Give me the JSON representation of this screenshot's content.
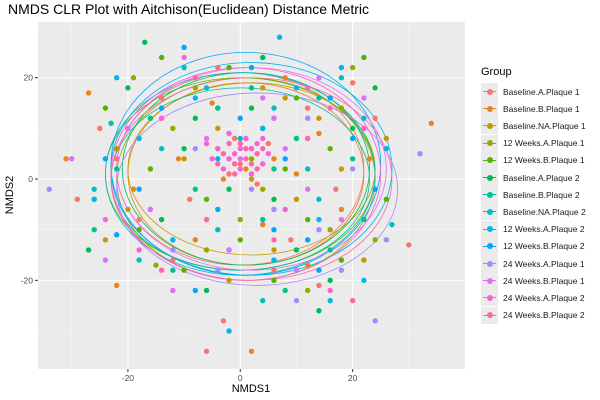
{
  "chart_data": {
    "type": "scatter",
    "title": "NMDS CLR Plot with Aitchison(Euclidean) Distance Metric",
    "xlabel": "NMDS1",
    "ylabel": "NMDS2",
    "xlim": [
      -36,
      40
    ],
    "ylim": [
      -37.5,
      31
    ],
    "x_ticks": [
      -20,
      0,
      20
    ],
    "y_ticks": [
      -20,
      0,
      20
    ],
    "x_tick_labels": [
      "-20",
      "0",
      "20"
    ],
    "y_tick_labels": [
      "-20",
      "0",
      "20"
    ],
    "grid": true,
    "legend_title": "Group",
    "legend_position": "right",
    "series": [
      {
        "name": "Baseline.A.Plaque 1",
        "color": "#F8766D",
        "ellipse": {
          "cx": 0,
          "cy": 2,
          "rx": 22,
          "ry": 19
        },
        "points": [
          [
            -22,
            4
          ],
          [
            -18,
            -8
          ],
          [
            -6,
            -34
          ],
          [
            12,
            14
          ],
          [
            30,
            -13
          ],
          [
            -4,
            22
          ],
          [
            6,
            -18
          ],
          [
            -14,
            16
          ],
          [
            2,
            6
          ],
          [
            0,
            3
          ],
          [
            -2,
            1
          ],
          [
            5,
            7
          ],
          [
            -9,
            -4
          ],
          [
            17,
            -2
          ],
          [
            9,
            -12
          ],
          [
            -25,
            10
          ],
          [
            20,
            19
          ],
          [
            -12,
            -16
          ],
          [
            14,
            -21
          ],
          [
            -29,
            -4
          ],
          [
            24,
            12
          ],
          [
            -3,
            -28
          ],
          [
            3,
            -1
          ],
          [
            -1,
            8
          ]
        ]
      },
      {
        "name": "Baseline.B.Plaque 1",
        "color": "#E7851E",
        "ellipse": {
          "cx": 1,
          "cy": 1,
          "rx": 21,
          "ry": 18
        },
        "points": [
          [
            -27,
            17
          ],
          [
            -22,
            -21
          ],
          [
            34,
            11
          ],
          [
            -31,
            4
          ],
          [
            -16,
            12
          ],
          [
            8,
            20
          ],
          [
            2,
            -34
          ],
          [
            18,
            -6
          ],
          [
            -8,
            -12
          ],
          [
            6,
            4
          ],
          [
            1,
            2
          ],
          [
            -3,
            0
          ],
          [
            12,
            -17
          ],
          [
            -11,
            4
          ],
          [
            23,
            4
          ],
          [
            14,
            9
          ],
          [
            -5,
            15
          ],
          [
            4,
            -9
          ],
          [
            -19,
            -2
          ],
          [
            10,
            1
          ]
        ]
      },
      {
        "name": "Baseline.NA.Plaque 1",
        "color": "#C49A00",
        "ellipse": {
          "cx": 2,
          "cy": 2,
          "rx": 22,
          "ry": 17
        },
        "points": [
          [
            -14,
            12
          ],
          [
            8,
            16
          ],
          [
            -6,
            -8
          ],
          [
            18,
            2
          ],
          [
            22,
            -16
          ],
          [
            -20,
            -6
          ],
          [
            4,
            18
          ],
          [
            -2,
            -20
          ],
          [
            10,
            -4
          ],
          [
            -10,
            4
          ],
          [
            2,
            0
          ],
          [
            14,
            12
          ],
          [
            -24,
            -12
          ],
          [
            26,
            8
          ],
          [
            -4,
            10
          ],
          [
            6,
            -14
          ]
        ]
      },
      {
        "name": "12 Weeks.A.Plaque 1",
        "color": "#99A800",
        "ellipse": {
          "cx": 1,
          "cy": 0,
          "rx": 23,
          "ry": 20
        },
        "points": [
          [
            -19,
            20
          ],
          [
            -26,
            -4
          ],
          [
            -12,
            10
          ],
          [
            16,
            -10
          ],
          [
            4,
            -2
          ],
          [
            -8,
            18
          ],
          [
            20,
            22
          ],
          [
            -15,
            -17
          ],
          [
            10,
            8
          ],
          [
            0,
            -8
          ],
          [
            -4,
            6
          ],
          [
            24,
            -12
          ],
          [
            6,
            12
          ],
          [
            -22,
            6
          ],
          [
            12,
            -22
          ],
          [
            -6,
            -14
          ],
          [
            2,
            4
          ],
          [
            18,
            14
          ]
        ]
      },
      {
        "name": "12 Weeks.B.Plaque 1",
        "color": "#53B400",
        "ellipse": {
          "cx": 0,
          "cy": 1,
          "rx": 24,
          "ry": 19
        },
        "points": [
          [
            -14,
            24
          ],
          [
            22,
            24
          ],
          [
            -2,
            22
          ],
          [
            16,
            6
          ],
          [
            -18,
            -10
          ],
          [
            6,
            -20
          ],
          [
            -24,
            14
          ],
          [
            10,
            16
          ],
          [
            -6,
            -4
          ],
          [
            4,
            10
          ],
          [
            -10,
            -18
          ],
          [
            26,
            -4
          ],
          [
            0,
            -12
          ],
          [
            -16,
            2
          ],
          [
            12,
            -8
          ],
          [
            8,
            2
          ],
          [
            -4,
            14
          ],
          [
            18,
            -16
          ]
        ]
      },
      {
        "name": "Baseline.A.Plaque 2",
        "color": "#00BC56",
        "ellipse": {
          "cx": 1,
          "cy": 2,
          "rx": 22,
          "ry": 19
        },
        "points": [
          [
            -17,
            27
          ],
          [
            -27,
            -14
          ],
          [
            14,
            -26
          ],
          [
            6,
            -4
          ],
          [
            -10,
            6
          ],
          [
            20,
            10
          ],
          [
            -6,
            -22
          ],
          [
            2,
            14
          ],
          [
            -20,
            18
          ],
          [
            10,
            -14
          ],
          [
            -2,
            -2
          ],
          [
            16,
            -20
          ],
          [
            -14,
            -8
          ],
          [
            24,
            18
          ],
          [
            4,
            24
          ],
          [
            -8,
            12
          ]
        ]
      },
      {
        "name": "Baseline.B.Plaque 2",
        "color": "#00C094",
        "ellipse": {
          "cx": 0,
          "cy": 0,
          "rx": 23,
          "ry": 18
        },
        "points": [
          [
            -12,
            -18
          ],
          [
            16,
            -14
          ],
          [
            -4,
            14
          ],
          [
            10,
            8
          ],
          [
            -22,
            2
          ],
          [
            4,
            -8
          ],
          [
            -8,
            -2
          ],
          [
            20,
            4
          ],
          [
            -16,
            12
          ],
          [
            8,
            -22
          ],
          [
            2,
            18
          ],
          [
            -26,
            -10
          ],
          [
            14,
            16
          ],
          [
            -2,
            -14
          ],
          [
            6,
            2
          ],
          [
            22,
            -8
          ]
        ]
      },
      {
        "name": "Baseline.NA.Plaque 2",
        "color": "#00BFC4",
        "ellipse": {
          "cx": 0,
          "cy": 1,
          "rx": 24,
          "ry": 20
        },
        "points": [
          [
            -23,
            11
          ],
          [
            27,
            -9
          ],
          [
            -10,
            22
          ],
          [
            14,
            -4
          ],
          [
            -18,
            -16
          ],
          [
            6,
            14
          ],
          [
            -4,
            -10
          ],
          [
            18,
            20
          ],
          [
            -14,
            6
          ],
          [
            10,
            -18
          ],
          [
            0,
            8
          ],
          [
            -26,
            -2
          ],
          [
            22,
            12
          ],
          [
            -6,
            18
          ],
          [
            4,
            -24
          ],
          [
            12,
            2
          ]
        ]
      },
      {
        "name": "12 Weeks.A.Plaque 2",
        "color": "#00B6EB",
        "ellipse": {
          "cx": 2,
          "cy": 2,
          "rx": 25,
          "ry": 21
        },
        "points": [
          [
            7,
            28
          ],
          [
            -2,
            -30
          ],
          [
            -26,
            -4
          ],
          [
            18,
            22
          ],
          [
            -8,
            16
          ],
          [
            14,
            -8
          ],
          [
            -18,
            8
          ],
          [
            22,
            -20
          ],
          [
            4,
            10
          ],
          [
            -12,
            -12
          ],
          [
            10,
            18
          ],
          [
            -4,
            4
          ],
          [
            26,
            6
          ],
          [
            -22,
            20
          ],
          [
            6,
            -16
          ],
          [
            16,
            -24
          ]
        ]
      },
      {
        "name": "12 Weeks.B.Plaque 2",
        "color": "#06A4FF",
        "ellipse": {
          "cx": 1,
          "cy": 3,
          "rx": 24,
          "ry": 22
        },
        "points": [
          [
            -22,
            -11
          ],
          [
            -8,
            -22
          ],
          [
            20,
            8
          ],
          [
            -14,
            14
          ],
          [
            12,
            -12
          ],
          [
            2,
            22
          ],
          [
            -18,
            -2
          ],
          [
            16,
            16
          ],
          [
            -4,
            -6
          ],
          [
            8,
            4
          ],
          [
            24,
            -2
          ],
          [
            -10,
            26
          ],
          [
            14,
            -18
          ],
          [
            0,
            12
          ],
          [
            -24,
            4
          ],
          [
            6,
            -10
          ]
        ]
      },
      {
        "name": "24 Weeks.A.Plaque 1",
        "color": "#A58AFF",
        "ellipse": {
          "cx": 3,
          "cy": -2,
          "rx": 25,
          "ry": 19
        },
        "points": [
          [
            -34,
            -2
          ],
          [
            32,
            5
          ],
          [
            24,
            -28
          ],
          [
            18,
            -18
          ],
          [
            -12,
            -14
          ],
          [
            6,
            -6
          ],
          [
            -20,
            10
          ],
          [
            12,
            12
          ],
          [
            -4,
            -18
          ],
          [
            26,
            -12
          ],
          [
            2,
            -2
          ],
          [
            -16,
            -6
          ],
          [
            10,
            -24
          ],
          [
            20,
            2
          ],
          [
            -8,
            6
          ],
          [
            14,
            -10
          ]
        ]
      },
      {
        "name": "24 Weeks.B.Plaque 1",
        "color": "#DF70F8",
        "ellipse": {
          "cx": 2,
          "cy": 2,
          "rx": 24,
          "ry": 20
        },
        "points": [
          [
            -30,
            4
          ],
          [
            -20,
            10
          ],
          [
            10,
            -18
          ],
          [
            -12,
            -22
          ],
          [
            4,
            16
          ],
          [
            18,
            -8
          ],
          [
            -6,
            8
          ],
          [
            14,
            20
          ],
          [
            -16,
            -6
          ],
          [
            8,
            6
          ],
          [
            22,
            16
          ],
          [
            -2,
            -14
          ],
          [
            12,
            -2
          ],
          [
            -24,
            -16
          ],
          [
            0,
            4
          ],
          [
            6,
            12
          ]
        ]
      },
      {
        "name": "24 Weeks.A.Plaque 2",
        "color": "#FB61D7",
        "ellipse": {
          "cx": 1,
          "cy": 1,
          "rx": 24,
          "ry": 21
        },
        "points": [
          [
            -2,
            4
          ],
          [
            -4,
            6
          ],
          [
            0,
            2
          ],
          [
            2,
            6
          ],
          [
            4,
            3
          ],
          [
            -3,
            2
          ],
          [
            1,
            8
          ],
          [
            -1,
            5
          ],
          [
            3,
            7
          ],
          [
            -5,
            4
          ],
          [
            2,
            1
          ],
          [
            5,
            5
          ],
          [
            -2,
            9
          ],
          [
            0,
            6
          ],
          [
            4,
            8
          ],
          [
            -6,
            7
          ],
          [
            -10,
            24
          ],
          [
            16,
            -22
          ],
          [
            -18,
            -14
          ],
          [
            22,
            10
          ],
          [
            8,
            -6
          ],
          [
            -14,
            12
          ],
          [
            12,
            18
          ],
          [
            -24,
            -8
          ]
        ]
      },
      {
        "name": "24 Weeks.B.Plaque 2",
        "color": "#FF66A8",
        "ellipse": {
          "cx": 2,
          "cy": 0,
          "rx": 25,
          "ry": 20
        },
        "points": [
          [
            1,
            4
          ],
          [
            -1,
            3
          ],
          [
            3,
            5
          ],
          [
            -3,
            5
          ],
          [
            0,
            7
          ],
          [
            2,
            3
          ],
          [
            -2,
            7
          ],
          [
            4,
            6
          ],
          [
            -4,
            3
          ],
          [
            1,
            6
          ],
          [
            -1,
            1
          ],
          [
            3,
            2
          ],
          [
            -14,
            -18
          ],
          [
            20,
            -24
          ],
          [
            -8,
            20
          ],
          [
            12,
            8
          ],
          [
            -22,
            4
          ],
          [
            6,
            -12
          ],
          [
            16,
            14
          ],
          [
            -6,
            -8
          ]
        ]
      }
    ]
  }
}
